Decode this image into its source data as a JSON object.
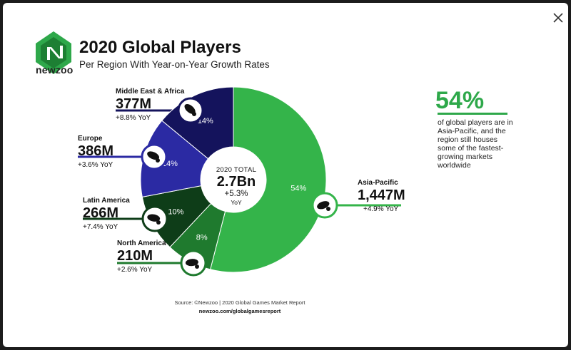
{
  "header": {
    "logo_text": "newzoo",
    "title": "2020 Global Players",
    "subtitle": "Per Region With Year-on-Year Growth Rates"
  },
  "center": {
    "label": "2020 TOTAL",
    "value": "2.7Bn",
    "growth": "+5.3%",
    "growth_unit": "YoY"
  },
  "callout": {
    "percent": "54%",
    "text": "of global players are in Asia-Pacific, and the region still houses some of the fastest-growing markets worldwide"
  },
  "regions": [
    {
      "name": "Asia-Pacific",
      "value": "1,447M",
      "yoy": "+4.9% YoY",
      "share_label": "54%"
    },
    {
      "name": "North America",
      "value": "210M",
      "yoy": "+2.6% YoY",
      "share_label": "8%"
    },
    {
      "name": "Latin America",
      "value": "266M",
      "yoy": "+7.4% YoY",
      "share_label": "10%"
    },
    {
      "name": "Europe",
      "value": "386M",
      "yoy": "+3.6% YoY",
      "share_label": "14%"
    },
    {
      "name": "Middle East & Africa",
      "value": "377M",
      "yoy": "+8.8% YoY",
      "share_label": "14%"
    }
  ],
  "colors": {
    "asia_pacific": "#34b44a",
    "north_america": "#1f7a2e",
    "latin_america": "#0e3d18",
    "europe": "#2b2aa3",
    "middle_east_africa": "#14135c",
    "accent_green": "#2ea84a"
  },
  "icons": {
    "close": "close-icon",
    "logo": "newzoo-logo-icon",
    "region_maps": [
      "asia-pacific-map-icon",
      "north-america-map-icon",
      "latin-america-map-icon",
      "europe-map-icon",
      "middle-east-africa-map-icon"
    ]
  },
  "chart_data": {
    "type": "pie",
    "title": "2020 Global Players",
    "subtitle": "Per Region With Year-on-Year Growth Rates",
    "donut": true,
    "categories": [
      "Asia-Pacific",
      "North America",
      "Latin America",
      "Europe",
      "Middle East & Africa"
    ],
    "values": [
      1447,
      210,
      266,
      386,
      377
    ],
    "share_percent": [
      54,
      8,
      10,
      14,
      14
    ],
    "yoy_growth_percent": [
      4.9,
      2.6,
      7.4,
      3.6,
      8.8
    ],
    "unit": "M",
    "total": "2.7Bn",
    "total_growth": "+5.3% YoY"
  },
  "footer": {
    "source": "Source: ©Newzoo | 2020 Global Games Market Report",
    "url": "newzoo.com/globalgamesreport"
  }
}
